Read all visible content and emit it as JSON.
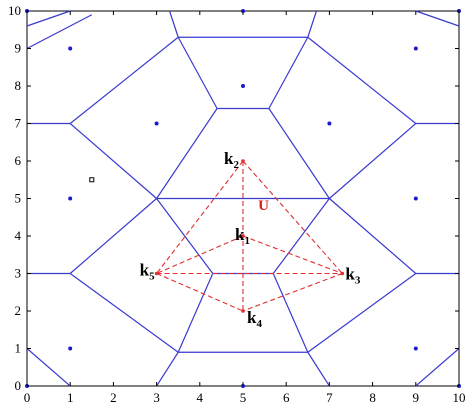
{
  "diagram": {
    "x_ticks": [
      "0",
      "1",
      "2",
      "3",
      "4",
      "5",
      "6",
      "7",
      "8",
      "9",
      "10"
    ],
    "y_ticks": [
      "0",
      "1",
      "2",
      "3",
      "4",
      "5",
      "6",
      "7",
      "8",
      "9",
      "10"
    ],
    "xlim": [
      0,
      10
    ],
    "ylim": [
      0,
      10
    ],
    "colors": {
      "voronoi": "#3a3ad0",
      "sites": "#1a1acc",
      "dashed": "#e03030",
      "u_label": "#d92020"
    },
    "sites": [
      [
        1,
        9
      ],
      [
        5,
        10
      ],
      [
        9,
        9
      ],
      [
        3,
        7
      ],
      [
        5,
        8
      ],
      [
        7,
        7
      ],
      [
        1,
        5
      ],
      [
        9,
        5
      ],
      [
        1,
        1
      ],
      [
        9,
        1
      ],
      [
        0,
        0
      ],
      [
        5,
        0
      ],
      [
        10,
        0
      ],
      [
        0,
        10
      ],
      [
        10,
        10
      ]
    ],
    "hollow_marker": [
      1.5,
      5.5
    ],
    "voronoi_edges": [
      [
        [
          1,
          10
        ],
        [
          0,
          9.6
        ]
      ],
      [
        [
          9,
          10
        ],
        [
          10,
          9.6
        ]
      ],
      [
        [
          3.3,
          10
        ],
        [
          3.5,
          9.3
        ]
      ],
      [
        [
          6.7,
          10
        ],
        [
          6.5,
          9.3
        ]
      ],
      [
        [
          0,
          9
        ],
        [
          1.5,
          9.9
        ]
      ],
      [
        [
          3.5,
          9.3
        ],
        [
          6.5,
          9.3
        ]
      ],
      [
        [
          3.5,
          9.3
        ],
        [
          1,
          7
        ]
      ],
      [
        [
          6.5,
          9.3
        ],
        [
          9,
          7
        ]
      ],
      [
        [
          0,
          7
        ],
        [
          1,
          7
        ]
      ],
      [
        [
          9,
          7
        ],
        [
          10,
          7
        ]
      ],
      [
        [
          3.5,
          9.3
        ],
        [
          4.4,
          7.4
        ]
      ],
      [
        [
          6.5,
          9.3
        ],
        [
          5.6,
          7.4
        ]
      ],
      [
        [
          1,
          7
        ],
        [
          3,
          5
        ]
      ],
      [
        [
          9,
          7
        ],
        [
          7,
          5
        ]
      ],
      [
        [
          3,
          5
        ],
        [
          4.4,
          7.4
        ]
      ],
      [
        [
          4.4,
          7.4
        ],
        [
          5.6,
          7.4
        ]
      ],
      [
        [
          5.6,
          7.4
        ],
        [
          7,
          5
        ]
      ],
      [
        [
          3,
          5
        ],
        [
          7,
          5
        ]
      ],
      [
        [
          3,
          5
        ],
        [
          1,
          3
        ]
      ],
      [
        [
          7,
          5
        ],
        [
          9,
          3
        ]
      ],
      [
        [
          0,
          3
        ],
        [
          1,
          3
        ]
      ],
      [
        [
          9,
          3
        ],
        [
          10,
          3
        ]
      ],
      [
        [
          3,
          5
        ],
        [
          4.3,
          3
        ]
      ],
      [
        [
          7,
          5
        ],
        [
          5.7,
          3
        ]
      ],
      [
        [
          4.3,
          3
        ],
        [
          5.7,
          3
        ]
      ],
      [
        [
          4.3,
          3
        ],
        [
          3.5,
          0.9
        ]
      ],
      [
        [
          5.7,
          3
        ],
        [
          6.5,
          0.9
        ]
      ],
      [
        [
          1,
          3
        ],
        [
          3.5,
          0.9
        ]
      ],
      [
        [
          9,
          3
        ],
        [
          6.5,
          0.9
        ]
      ],
      [
        [
          3.5,
          0.9
        ],
        [
          6.5,
          0.9
        ]
      ],
      [
        [
          3.5,
          0.9
        ],
        [
          3,
          0
        ]
      ],
      [
        [
          6.5,
          0.9
        ],
        [
          7,
          0
        ]
      ],
      [
        [
          0,
          1
        ],
        [
          1,
          0
        ]
      ],
      [
        [
          10,
          1
        ],
        [
          9,
          0
        ]
      ]
    ],
    "points": [
      {
        "key": "k1",
        "x": 5,
        "y": 4,
        "letter": "k",
        "sub": "1",
        "dx": -8,
        "dy": 4
      },
      {
        "key": "k2",
        "x": 5,
        "y": 6,
        "letter": "k",
        "sub": "2",
        "dx": -19,
        "dy": 3
      },
      {
        "key": "k3",
        "x": 7.3,
        "y": 3,
        "letter": "k",
        "sub": "3",
        "dx": 3,
        "dy": 6
      },
      {
        "key": "k4",
        "x": 5,
        "y": 2,
        "letter": "k",
        "sub": "4",
        "dx": 4,
        "dy": 12
      },
      {
        "key": "k5",
        "x": 3,
        "y": 3,
        "letter": "k",
        "sub": "5",
        "dx": -17,
        "dy": 2
      }
    ],
    "dashed_edges": [
      [
        "k2",
        "k5"
      ],
      [
        "k2",
        "k3"
      ],
      [
        "k2",
        "k4"
      ],
      [
        "k5",
        "k4"
      ],
      [
        "k3",
        "k4"
      ],
      [
        "k5",
        "k3"
      ],
      [
        "k1",
        "k5"
      ],
      [
        "k1",
        "k3"
      ]
    ],
    "u_label": {
      "text": "U",
      "x": 5.35,
      "y": 4.7
    }
  }
}
